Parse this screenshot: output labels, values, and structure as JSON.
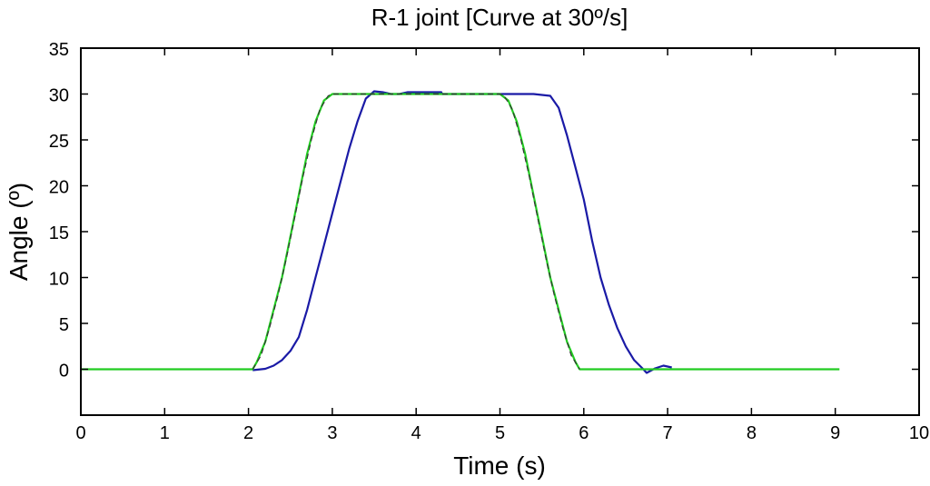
{
  "chart_data": {
    "type": "line",
    "title": "R-1 joint [Curve at 30º/s]",
    "xlabel": "Time (s)",
    "ylabel": "Angle (º)",
    "xlim": [
      0,
      10
    ],
    "ylim": [
      -5,
      35
    ],
    "xticks": [
      0,
      1,
      2,
      3,
      4,
      5,
      6,
      7,
      8,
      9,
      10
    ],
    "yticks": [
      0,
      5,
      10,
      15,
      20,
      25,
      30,
      35
    ],
    "xtick_labels": [
      "0",
      "1",
      "2",
      "3",
      "4",
      "5",
      "6",
      "7",
      "8",
      "9",
      "10"
    ],
    "ytick_labels": [
      "0",
      "5",
      "10",
      "15",
      "20",
      "25",
      "30",
      "35"
    ],
    "grid": false,
    "series": [
      {
        "color": "#1a1aa6",
        "style": "solid",
        "points": [
          [
            2.05,
            -0.1
          ],
          [
            2.2,
            0.05
          ],
          [
            2.3,
            0.4
          ],
          [
            2.4,
            1.0
          ],
          [
            2.5,
            2.0
          ],
          [
            2.6,
            3.5
          ],
          [
            2.7,
            6.5
          ],
          [
            2.8,
            10.0
          ],
          [
            2.9,
            13.5
          ],
          [
            3.0,
            17.0
          ],
          [
            3.1,
            20.5
          ],
          [
            3.2,
            24.0
          ],
          [
            3.3,
            27.0
          ],
          [
            3.4,
            29.5
          ],
          [
            3.5,
            30.3
          ],
          [
            3.6,
            30.2
          ],
          [
            3.7,
            30.0
          ],
          [
            3.8,
            30.0
          ],
          [
            3.9,
            30.2
          ],
          [
            4.3,
            30.2
          ],
          [
            4.31,
            30.0
          ],
          [
            5.0,
            30.0
          ],
          [
            5.4,
            30.0
          ],
          [
            5.6,
            29.8
          ],
          [
            5.7,
            28.5
          ],
          [
            5.8,
            25.5
          ],
          [
            5.9,
            22.0
          ],
          [
            6.0,
            18.5
          ],
          [
            6.1,
            14.0
          ],
          [
            6.2,
            10.0
          ],
          [
            6.3,
            7.0
          ],
          [
            6.4,
            4.5
          ],
          [
            6.5,
            2.5
          ],
          [
            6.6,
            1.0
          ],
          [
            6.7,
            0.1
          ],
          [
            6.75,
            -0.4
          ],
          [
            6.85,
            0.1
          ],
          [
            6.95,
            0.4
          ],
          [
            7.05,
            0.2
          ]
        ]
      },
      {
        "color": "#22cc22",
        "style": "solid",
        "points": [
          [
            0.0,
            0.0
          ],
          [
            2.05,
            0.0
          ],
          [
            2.1,
            0.8
          ],
          [
            2.2,
            3.0
          ],
          [
            2.3,
            6.5
          ],
          [
            2.4,
            10.0
          ],
          [
            2.5,
            14.5
          ],
          [
            2.6,
            19.0
          ],
          [
            2.7,
            23.5
          ],
          [
            2.8,
            27.0
          ],
          [
            2.9,
            29.3
          ],
          [
            3.0,
            30.0
          ],
          [
            5.0,
            30.0
          ],
          [
            5.1,
            29.3
          ],
          [
            5.2,
            27.0
          ],
          [
            5.3,
            23.5
          ],
          [
            5.4,
            19.0
          ],
          [
            5.5,
            14.5
          ],
          [
            5.6,
            10.0
          ],
          [
            5.7,
            6.5
          ],
          [
            5.8,
            3.0
          ],
          [
            5.9,
            0.8
          ],
          [
            5.95,
            0.0
          ],
          [
            9.05,
            0.0
          ]
        ]
      },
      {
        "color": "#333333",
        "style": "dashed",
        "points": [
          [
            2.05,
            0.0
          ],
          [
            2.15,
            1.5
          ],
          [
            2.25,
            4.5
          ],
          [
            2.35,
            8.0
          ],
          [
            2.45,
            12.0
          ],
          [
            2.55,
            16.5
          ],
          [
            2.65,
            21.0
          ],
          [
            2.75,
            25.0
          ],
          [
            2.85,
            28.3
          ],
          [
            2.95,
            29.8
          ],
          [
            3.0,
            30.0
          ],
          [
            5.0,
            30.0
          ],
          [
            5.05,
            29.8
          ],
          [
            5.15,
            28.3
          ],
          [
            5.25,
            25.0
          ],
          [
            5.35,
            21.0
          ],
          [
            5.45,
            16.5
          ],
          [
            5.55,
            12.0
          ],
          [
            5.65,
            8.0
          ],
          [
            5.75,
            4.5
          ],
          [
            5.85,
            1.5
          ],
          [
            5.95,
            0.0
          ]
        ]
      }
    ]
  }
}
